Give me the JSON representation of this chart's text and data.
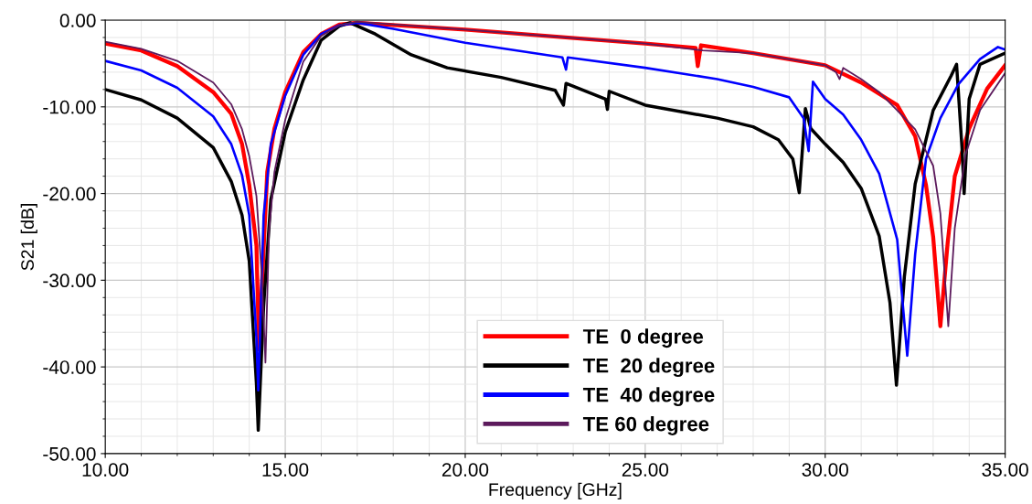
{
  "chart_data": {
    "type": "line",
    "xlabel": "Frequency [GHz]",
    "ylabel": "S21 [dB]",
    "xlim": [
      10,
      35
    ],
    "ylim": [
      -50,
      0
    ],
    "xticks": [
      {
        "value": 10,
        "label": "10.00"
      },
      {
        "value": 15,
        "label": "15.00"
      },
      {
        "value": 20,
        "label": "20.00"
      },
      {
        "value": 25,
        "label": "25.00"
      },
      {
        "value": 30,
        "label": "30.00"
      },
      {
        "value": 35,
        "label": "35.00"
      }
    ],
    "yticks": [
      {
        "value": -50,
        "label": "-50.00"
      },
      {
        "value": -40,
        "label": "-40.00"
      },
      {
        "value": -30,
        "label": "-30.00"
      },
      {
        "value": -20,
        "label": "-20.00"
      },
      {
        "value": -10,
        "label": "-10.00"
      },
      {
        "value": 0,
        "label": "0.00"
      }
    ],
    "grid": true,
    "legend": "bottom",
    "marker": "none",
    "line_style": "solid",
    "series": [
      {
        "name": "TE  0 degree",
        "color": "#ff0000",
        "x": [
          10,
          11,
          12,
          13,
          13.5,
          13.8,
          14.0,
          14.2,
          14.27,
          14.5,
          14.7,
          15.0,
          15.5,
          16,
          16.5,
          17,
          20,
          25,
          26.4,
          26.46,
          26.55,
          28,
          30,
          31,
          32,
          32.5,
          32.8,
          33.0,
          33.2,
          33.4,
          33.6,
          34,
          34.5,
          35
        ],
        "values": [
          -2.7,
          -3.5,
          -5.3,
          -8.3,
          -10.8,
          -14.3,
          -19,
          -26,
          -38,
          -17.5,
          -12.5,
          -8.3,
          -3.7,
          -1.6,
          -0.5,
          -0.3,
          -1.1,
          -2.7,
          -3.2,
          -5.3,
          -2.9,
          -3.8,
          -5.2,
          -7.2,
          -9.8,
          -13.4,
          -19,
          -25,
          -35.3,
          -25.8,
          -18,
          -12.5,
          -7.9,
          -5.2
        ]
      },
      {
        "name": "TE  20 degree",
        "color": "#000000",
        "x": [
          10,
          11,
          12,
          13,
          13.5,
          13.8,
          14.0,
          14.2,
          14.25,
          14.4,
          14.6,
          15,
          15.5,
          16,
          16.5,
          16.8,
          17.5,
          18.5,
          19.5,
          21,
          22.5,
          22.73,
          22.8,
          23.9,
          23.95,
          24.0,
          25,
          27,
          28,
          28.7,
          29.1,
          29.28,
          29.45,
          29.6,
          30,
          30.5,
          31,
          31.5,
          31.8,
          31.98,
          32.2,
          32.5,
          33,
          33.5,
          33.65,
          33.8,
          33.86,
          34.0,
          34.3,
          35
        ],
        "values": [
          -8.0,
          -9.2,
          -11.3,
          -14.7,
          -18.6,
          -22.5,
          -27.8,
          -42,
          -47.3,
          -33,
          -20.7,
          -12.9,
          -6.9,
          -2.3,
          -0.7,
          -0.3,
          -1.6,
          -4.0,
          -5.5,
          -6.6,
          -8.1,
          -9.8,
          -7.3,
          -9.1,
          -10.3,
          -8.2,
          -9.8,
          -11.3,
          -12.3,
          -13.8,
          -16,
          -19.9,
          -10.2,
          -12.5,
          -14.3,
          -16.4,
          -19.4,
          -24.9,
          -32.6,
          -42.1,
          -29.6,
          -18.9,
          -10.4,
          -6.4,
          -5.1,
          -14.7,
          -20,
          -9.1,
          -5.1,
          -3.8
        ]
      },
      {
        "name": "TE  40 degree",
        "color": "#0000ff",
        "x": [
          10,
          11,
          12,
          13,
          13.5,
          13.8,
          14.0,
          14.2,
          14.25,
          14.4,
          14.6,
          15,
          15.5,
          16,
          16.5,
          17,
          18,
          20,
          22.7,
          22.8,
          22.85,
          25,
          27,
          28,
          29,
          29.4,
          29.54,
          29.66,
          30,
          30.5,
          31,
          31.5,
          32.0,
          32.28,
          32.5,
          32.8,
          33.2,
          33.7,
          34.3,
          34.8,
          35
        ],
        "values": [
          -4.7,
          -5.8,
          -7.8,
          -11.1,
          -14.3,
          -17.9,
          -22.5,
          -36.7,
          -42.7,
          -22.5,
          -14.3,
          -8.7,
          -4.0,
          -1.6,
          -0.6,
          -0.3,
          -1.0,
          -2.6,
          -4.3,
          -5.7,
          -4.3,
          -5.5,
          -6.8,
          -7.7,
          -8.9,
          -11.3,
          -15.1,
          -7.1,
          -9.1,
          -10.9,
          -13.8,
          -17.7,
          -25.3,
          -38.7,
          -27,
          -16,
          -11.3,
          -7.4,
          -4.5,
          -3.1,
          -3.4
        ]
      },
      {
        "name": "TE 60 degree",
        "color": "#5c1a5c",
        "x": [
          10,
          11,
          12,
          13,
          13.5,
          13.8,
          14.0,
          14.2,
          14.35,
          14.45,
          14.55,
          14.7,
          15,
          15.5,
          16,
          16.5,
          17,
          20,
          25,
          26.6,
          28,
          30,
          30.3,
          30.4,
          30.5,
          31,
          31.5,
          32,
          32.5,
          33.0,
          33.2,
          33.42,
          33.6,
          33.9,
          34.3,
          35
        ],
        "values": [
          -2.5,
          -3.3,
          -4.7,
          -7.2,
          -9.7,
          -12.6,
          -15.7,
          -20.3,
          -29.6,
          -39.5,
          -24.3,
          -17.5,
          -11.5,
          -4.8,
          -1.8,
          -0.6,
          -0.2,
          -1.1,
          -2.7,
          -3.5,
          -3.8,
          -5.2,
          -6,
          -6.8,
          -5.5,
          -6.8,
          -8.3,
          -10.4,
          -12.6,
          -16.8,
          -22.3,
          -35.3,
          -24,
          -15.5,
          -10.4,
          -6.1
        ]
      }
    ]
  }
}
